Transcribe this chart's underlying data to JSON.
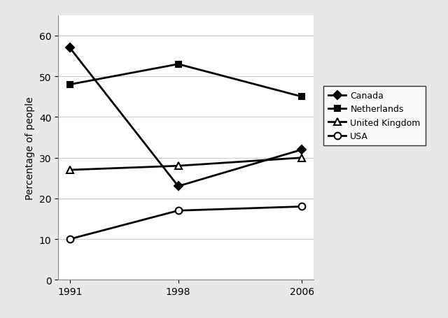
{
  "years": [
    1991,
    1998,
    2006
  ],
  "series": {
    "Canada": {
      "values": [
        57,
        23,
        32
      ],
      "marker": "D",
      "color": "#000000",
      "linestyle": "-",
      "linewidth": 2.0,
      "markersize": 6,
      "markerfacecolor": "#000000"
    },
    "Netherlands": {
      "values": [
        48,
        53,
        45
      ],
      "marker": "s",
      "color": "#000000",
      "linestyle": "-",
      "linewidth": 2.0,
      "markersize": 6,
      "markerfacecolor": "#000000"
    },
    "United Kingdom": {
      "values": [
        27,
        28,
        30
      ],
      "marker": "^",
      "color": "#000000",
      "linestyle": "-",
      "linewidth": 2.0,
      "markersize": 7,
      "markerfacecolor": "#ffffff"
    },
    "USA": {
      "values": [
        10,
        17,
        18
      ],
      "marker": "o",
      "color": "#000000",
      "linestyle": "-",
      "linewidth": 2.0,
      "markersize": 7,
      "markerfacecolor": "#ffffff"
    }
  },
  "ylabel": "Percentage of people",
  "ylim": [
    0,
    65
  ],
  "yticks": [
    0,
    10,
    20,
    30,
    40,
    50,
    60
  ],
  "xticks": [
    1991,
    1998,
    2006
  ],
  "fig_facecolor": "#e8e8e8",
  "plot_facecolor": "#ffffff",
  "grid_color": "#cccccc",
  "figsize": [
    6.4,
    4.56
  ],
  "dpi": 100
}
